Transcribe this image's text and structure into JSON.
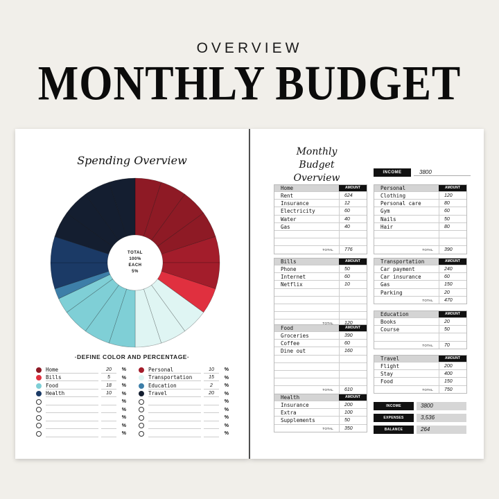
{
  "header": {
    "subtitle": "OVERVIEW",
    "title": "MONTHLY BUDGET"
  },
  "left_page": {
    "title": "Spending Overview",
    "center": [
      "TOTAL",
      "100%",
      "EACH",
      "5%"
    ],
    "define_label": "·DEFINE COLOR AND PERCENTAGE·",
    "percent_symbol": "%",
    "legend_col1": [
      {
        "name": "Home",
        "value": "20",
        "color": "#8e1a25"
      },
      {
        "name": "Bills",
        "value": "5",
        "color": "#e0303f"
      },
      {
        "name": "Food",
        "value": "18",
        "color": "#7fcfd6"
      },
      {
        "name": "Health",
        "value": "10",
        "color": "#1b3a66"
      },
      {
        "name": "",
        "value": "",
        "color": ""
      },
      {
        "name": "",
        "value": "",
        "color": ""
      },
      {
        "name": "",
        "value": "",
        "color": ""
      },
      {
        "name": "",
        "value": "",
        "color": ""
      },
      {
        "name": "",
        "value": "",
        "color": ""
      }
    ],
    "legend_col2": [
      {
        "name": "Personal",
        "value": "10",
        "color": "#a31d2b"
      },
      {
        "name": "Transportation",
        "value": "15",
        "color": "#dff5f3"
      },
      {
        "name": "Education",
        "value": "2",
        "color": "#3d7ea8"
      },
      {
        "name": "Travel",
        "value": "20",
        "color": "#141e30"
      },
      {
        "name": "",
        "value": "",
        "color": ""
      },
      {
        "name": "",
        "value": "",
        "color": ""
      },
      {
        "name": "",
        "value": "",
        "color": ""
      },
      {
        "name": "",
        "value": "",
        "color": ""
      },
      {
        "name": "",
        "value": "",
        "color": ""
      }
    ]
  },
  "chart_data": {
    "type": "pie",
    "title": "Spending Overview",
    "subtitle": "TOTAL 100% EACH 5%",
    "categories": [
      "Home",
      "Personal",
      "Bills",
      "Transportation",
      "Food",
      "Education",
      "Health",
      "Travel"
    ],
    "values": [
      20,
      10,
      5,
      15,
      18,
      2,
      10,
      20
    ],
    "colors": [
      "#8e1a25",
      "#a31d2b",
      "#e0303f",
      "#dff5f3",
      "#7fcfd6",
      "#3d7ea8",
      "#1b3a66",
      "#141e30"
    ],
    "segment_step_percent": 5,
    "legend_position": "bottom"
  },
  "right_page": {
    "title_line1": "Monthly Budget",
    "title_line2": "Overview",
    "income_label": "INCOME",
    "income_value": "3800",
    "amount_label": "AMOUNT",
    "total_label": "TOTAL",
    "categories": {
      "home": {
        "name": "Home",
        "items": [
          [
            "Rent",
            "624"
          ],
          [
            "Insurance",
            "12"
          ],
          [
            "Electricity",
            "60"
          ],
          [
            "Water",
            "40"
          ],
          [
            "Gas",
            "40"
          ],
          [
            "",
            ""
          ],
          [
            "",
            ""
          ]
        ],
        "total": "776"
      },
      "bills": {
        "name": "Bills",
        "items": [
          [
            "Phone",
            "50"
          ],
          [
            "Internet",
            "60"
          ],
          [
            "Netflix",
            "10"
          ],
          [
            "",
            ""
          ],
          [
            "",
            ""
          ],
          [
            "",
            ""
          ],
          [
            "",
            ""
          ]
        ],
        "total": "120"
      },
      "food": {
        "name": "Food",
        "items": [
          [
            "Groceries",
            "390"
          ],
          [
            "Coffee",
            "60"
          ],
          [
            "Dine out",
            "160"
          ],
          [
            "",
            ""
          ],
          [
            "",
            ""
          ],
          [
            "",
            ""
          ],
          [
            "",
            ""
          ]
        ],
        "total": "610"
      },
      "health": {
        "name": "Health",
        "items": [
          [
            "Insurance",
            "200"
          ],
          [
            "Extra",
            "100"
          ],
          [
            "Supplements",
            "50"
          ]
        ],
        "total": "350"
      },
      "personal": {
        "name": "Personal",
        "items": [
          [
            "Clothing",
            "120"
          ],
          [
            "Personal care",
            "80"
          ],
          [
            "Gym",
            "60"
          ],
          [
            "Nails",
            "50"
          ],
          [
            "Hair",
            "80"
          ],
          [
            "",
            ""
          ],
          [
            "",
            ""
          ]
        ],
        "total": "390"
      },
      "transportation": {
        "name": "Transportation",
        "items": [
          [
            "Car payment",
            "240"
          ],
          [
            "Car insurance",
            "60"
          ],
          [
            "Gas",
            "150"
          ],
          [
            "Parking",
            "20"
          ]
        ],
        "total": "470"
      },
      "education": {
        "name": "Education",
        "items": [
          [
            "Books",
            "20"
          ],
          [
            "Course",
            "50"
          ],
          [
            "",
            ""
          ]
        ],
        "total": "70"
      },
      "travel": {
        "name": "Travel",
        "items": [
          [
            "Flight",
            "200"
          ],
          [
            "Stay",
            "400"
          ],
          [
            "Food",
            "150"
          ]
        ],
        "total": "750"
      }
    },
    "summary": [
      {
        "label": "INCOME",
        "value": "3800"
      },
      {
        "label": "EXPENSES",
        "value": "3,536"
      },
      {
        "label": "BALANCE",
        "value": "264"
      }
    ]
  }
}
